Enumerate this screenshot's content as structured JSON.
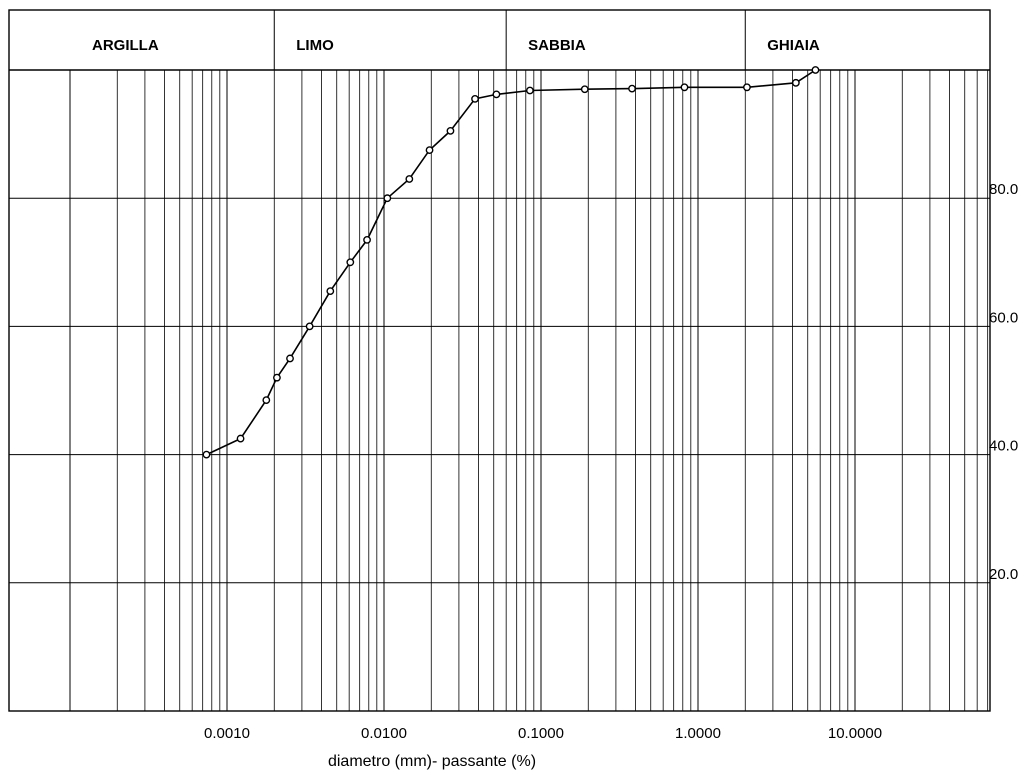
{
  "chart_data": {
    "type": "line",
    "x_scale": "log",
    "xlim": [
      0.0001,
      50
    ],
    "ylim": [
      0,
      100
    ],
    "grid": true,
    "bands": [
      {
        "label": "ARGILLA",
        "from": 0.0001,
        "to": 0.002
      },
      {
        "label": "LIMO",
        "from": 0.002,
        "to": 0.06
      },
      {
        "label": "SABBIA",
        "from": 0.06,
        "to": 2
      },
      {
        "label": "GHIAIA",
        "from": 2,
        "to": 50
      }
    ],
    "x_ticks": [
      {
        "value": 0.001,
        "label": "0.0010"
      },
      {
        "value": 0.01,
        "label": "0.0100"
      },
      {
        "value": 0.1,
        "label": "0.1000"
      },
      {
        "value": 1,
        "label": "1.0000"
      },
      {
        "value": 10,
        "label": "10.0000"
      }
    ],
    "y_ticks": [
      {
        "value": 20,
        "label": "20.0"
      },
      {
        "value": 40,
        "label": "40.0"
      },
      {
        "value": 60,
        "label": "60.0"
      },
      {
        "value": 80,
        "label": "80.0"
      }
    ],
    "xlabel": "diametro (mm)- passante (%)",
    "series": [
      {
        "x": [
          0.00074,
          0.00122,
          0.00178,
          0.00208,
          0.00252,
          0.00336,
          0.00455,
          0.0061,
          0.0078,
          0.0105,
          0.0145,
          0.0195,
          0.0265,
          0.038,
          0.052,
          0.085,
          0.19,
          0.38,
          0.82,
          2.05,
          4.2,
          5.6
        ],
        "y": [
          40.0,
          42.5,
          48.5,
          52.0,
          55.0,
          60.0,
          65.5,
          70.0,
          73.5,
          80.0,
          83.0,
          87.5,
          90.5,
          95.5,
          96.2,
          96.8,
          97.0,
          97.1,
          97.3,
          97.3,
          98.0,
          100.0
        ]
      }
    ]
  }
}
